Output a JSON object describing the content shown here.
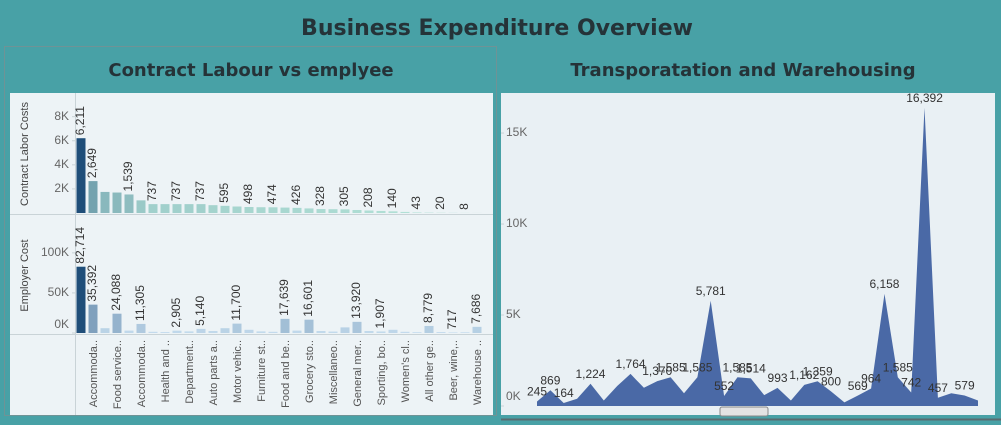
{
  "title": "Business Expenditure Overview",
  "chart_data": [
    {
      "type": "bar",
      "title": "Contract Labour vs emplyee",
      "categories": [
        null,
        "Accommoda..",
        null,
        "Food service..",
        null,
        "Accommoda..",
        null,
        "Health and ..",
        null,
        "Department..",
        null,
        "Auto parts a..",
        null,
        "Motor vehic..",
        null,
        "Furniture st..",
        null,
        "Food and be..",
        null,
        "Grocery sto..",
        null,
        "Miscellaneo..",
        null,
        "General mer..",
        null,
        "Sporting, bo..",
        null,
        "Women's cl..",
        null,
        "All other ge..",
        null,
        "Beer, wine,..",
        null,
        "Warehouse .."
      ],
      "series": [
        {
          "name": "Contract Labor Costs",
          "color_range": [
            "#b3e2d7",
            "#1f4e79"
          ],
          "values": [
            6211,
            2649,
            1750,
            1700,
            1539,
            1050,
            737,
            737,
            737,
            737,
            737,
            650,
            595,
            540,
            498,
            480,
            474,
            450,
            426,
            380,
            328,
            315,
            305,
            250,
            208,
            170,
            140,
            90,
            43,
            30,
            20,
            12,
            8,
            5
          ],
          "value_labels": [
            "6,211",
            "2,649",
            null,
            null,
            "1,539",
            null,
            "737",
            null,
            "737",
            null,
            "737",
            null,
            "595",
            null,
            "498",
            null,
            "474",
            null,
            "426",
            null,
            "328",
            null,
            "305",
            null,
            "208",
            null,
            "140",
            null,
            "43",
            null,
            "20",
            null,
            "8",
            null
          ],
          "ylim": [
            0,
            9800
          ],
          "yticks": [
            {
              "value": 2000,
              "label": "2K"
            },
            {
              "value": 4000,
              "label": "4K"
            },
            {
              "value": 6000,
              "label": "6K"
            },
            {
              "value": 8000,
              "label": "8K"
            }
          ]
        },
        {
          "name": "Employer Cost",
          "color_range": [
            "#c6ddef",
            "#1f4e79"
          ],
          "values": [
            82714,
            35392,
            6000,
            24088,
            3000,
            11305,
            1500,
            1200,
            2905,
            2000,
            5140,
            2500,
            6000,
            11700,
            4000,
            2000,
            1500,
            17639,
            3000,
            16601,
            2500,
            1800,
            7000,
            13920,
            2500,
            1907,
            4000,
            1500,
            1000,
            8779,
            1200,
            717,
            900,
            7686
          ],
          "value_labels": [
            "82,714",
            "35,392",
            null,
            "24,088",
            null,
            "11,305",
            null,
            null,
            "2,905",
            null,
            "5,140",
            null,
            null,
            "11,700",
            null,
            null,
            null,
            "17,639",
            null,
            "16,601",
            null,
            null,
            null,
            "13,920",
            null,
            "1,907",
            null,
            null,
            null,
            "8,779",
            null,
            "717",
            null,
            "7,686"
          ],
          "ylim": [
            0,
            143500
          ],
          "yticks": [
            {
              "value": 0,
              "label": "0K"
            },
            {
              "value": 50000,
              "label": "50K"
            },
            {
              "value": 100000,
              "label": "100K"
            }
          ]
        }
      ]
    },
    {
      "type": "area",
      "title": "Transporatation and Warehousing",
      "color": "#4a69a6",
      "values": [
        245,
        869,
        164,
        400,
        1224,
        300,
        1100,
        1764,
        1000,
        1370,
        1585,
        700,
        1585,
        5781,
        552,
        1585,
        1514,
        600,
        993,
        300,
        1162,
        1359,
        800,
        200,
        569,
        964,
        6158,
        1585,
        742,
        16392,
        457,
        700,
        579,
        300
      ],
      "value_labels": [
        "245",
        "869",
        "164",
        null,
        "1,224",
        null,
        null,
        "1,764",
        null,
        "1,370",
        "1,585",
        null,
        "1,585",
        "5,781",
        "552",
        "1,585",
        "1,514",
        null,
        "993",
        null,
        "1,162",
        "1,359",
        "800",
        null,
        "569",
        "964",
        "6,158",
        "1,585",
        "742",
        "16,392",
        "457",
        null,
        "579",
        null
      ],
      "ylim": [
        0,
        17200
      ],
      "yticks": [
        {
          "value": 0,
          "label": "0K"
        },
        {
          "value": 5000,
          "label": "5K"
        },
        {
          "value": 10000,
          "label": "10K"
        },
        {
          "value": 15000,
          "label": "15K"
        }
      ]
    }
  ]
}
